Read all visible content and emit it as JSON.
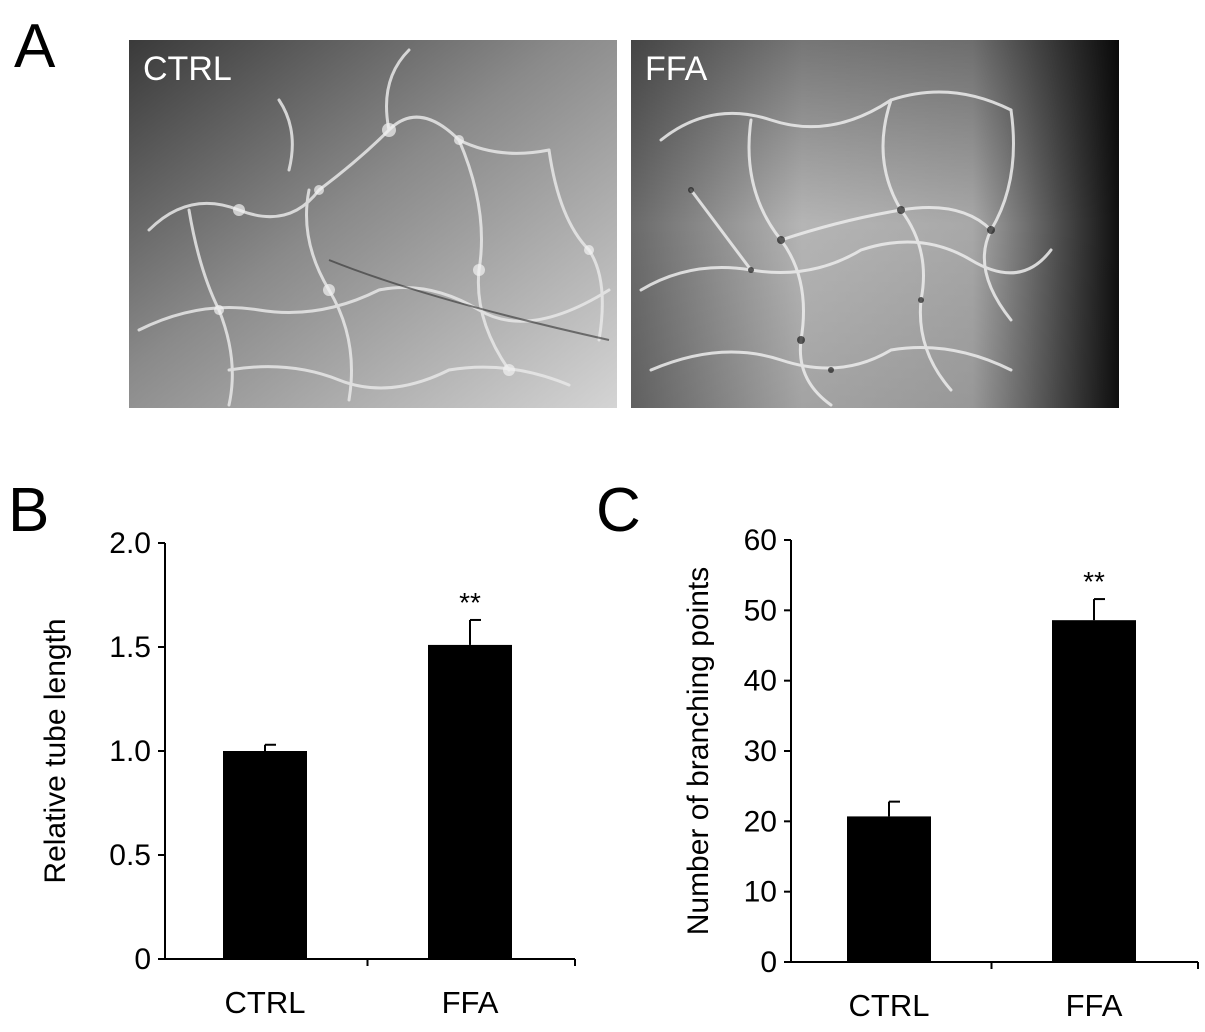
{
  "panels": {
    "a": {
      "letter": "A",
      "images": [
        {
          "label": "CTRL"
        },
        {
          "label": "FFA"
        }
      ]
    },
    "b": {
      "letter": "B"
    },
    "c": {
      "letter": "C"
    }
  },
  "colors": {
    "bar": "#000000",
    "axis": "#000000",
    "micrograph_dark": "#2a2a2a",
    "micrograph_light": "#cfcfcf"
  },
  "chart_data": [
    {
      "id": "b",
      "type": "bar",
      "categories": [
        "CTRL",
        "FFA"
      ],
      "values": [
        1.0,
        1.51
      ],
      "errors": [
        0.03,
        0.12
      ],
      "significance": [
        "",
        "**"
      ],
      "title": "",
      "xlabel": "",
      "ylabel": "Relative tube length",
      "ylim": [
        0,
        2.0
      ],
      "yticks": [
        0,
        0.5,
        1.0,
        1.5,
        2.0
      ],
      "ytick_labels": [
        "0",
        "0.5",
        "1.0",
        "1.5",
        "2.0"
      ],
      "grid": false,
      "legend": "none"
    },
    {
      "id": "c",
      "type": "bar",
      "categories": [
        "CTRL",
        "FFA"
      ],
      "values": [
        20.7,
        48.6
      ],
      "errors": [
        2.1,
        3.0
      ],
      "significance": [
        "",
        "**"
      ],
      "title": "",
      "xlabel": "",
      "ylabel": "Number of branching points",
      "ylim": [
        0,
        60
      ],
      "yticks": [
        0,
        10,
        20,
        30,
        40,
        50,
        60
      ],
      "ytick_labels": [
        "0",
        "10",
        "20",
        "30",
        "40",
        "50",
        "60"
      ],
      "grid": false,
      "legend": "none"
    }
  ]
}
